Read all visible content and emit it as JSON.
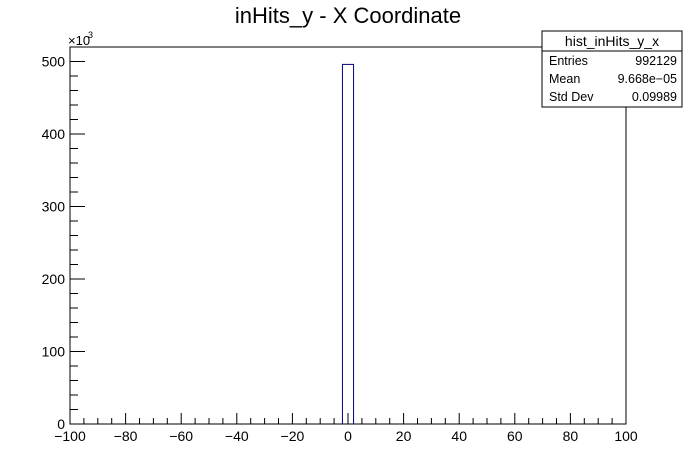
{
  "chart_data": {
    "type": "bar",
    "title": "inHits_y - X Coordinate",
    "xlabel": "",
    "ylabel": "",
    "xlim": [
      -100,
      100
    ],
    "ylim": [
      0,
      520000
    ],
    "bin_width": 4,
    "y_multiplier_label": "×10",
    "y_multiplier_exponent": "3",
    "x_ticks": [
      {
        "value": -100,
        "label": "−100"
      },
      {
        "value": -80,
        "label": "−80"
      },
      {
        "value": -60,
        "label": "−60"
      },
      {
        "value": -40,
        "label": "−40"
      },
      {
        "value": -20,
        "label": "−20"
      },
      {
        "value": 0,
        "label": "0"
      },
      {
        "value": 20,
        "label": "20"
      },
      {
        "value": 40,
        "label": "40"
      },
      {
        "value": 60,
        "label": "60"
      },
      {
        "value": 80,
        "label": "80"
      },
      {
        "value": 100,
        "label": "100"
      }
    ],
    "y_ticks": [
      {
        "value": 0,
        "label": "0"
      },
      {
        "value": 100000,
        "label": "100"
      },
      {
        "value": 200000,
        "label": "200"
      },
      {
        "value": 300000,
        "label": "300"
      },
      {
        "value": 400000,
        "label": "400"
      },
      {
        "value": 500000,
        "label": "500"
      }
    ],
    "bins": [
      {
        "x_low": -2,
        "x_high": 2,
        "value": 496000
      }
    ],
    "grid": false,
    "line_color": "#000080",
    "stats_box": {
      "title": "hist_inHits_y_x",
      "rows": [
        {
          "label": "Entries",
          "value": "992129"
        },
        {
          "label": "Mean",
          "value": "9.668e−05"
        },
        {
          "label": "Std Dev",
          "value": "0.09989"
        }
      ],
      "placement": "top-right"
    }
  }
}
